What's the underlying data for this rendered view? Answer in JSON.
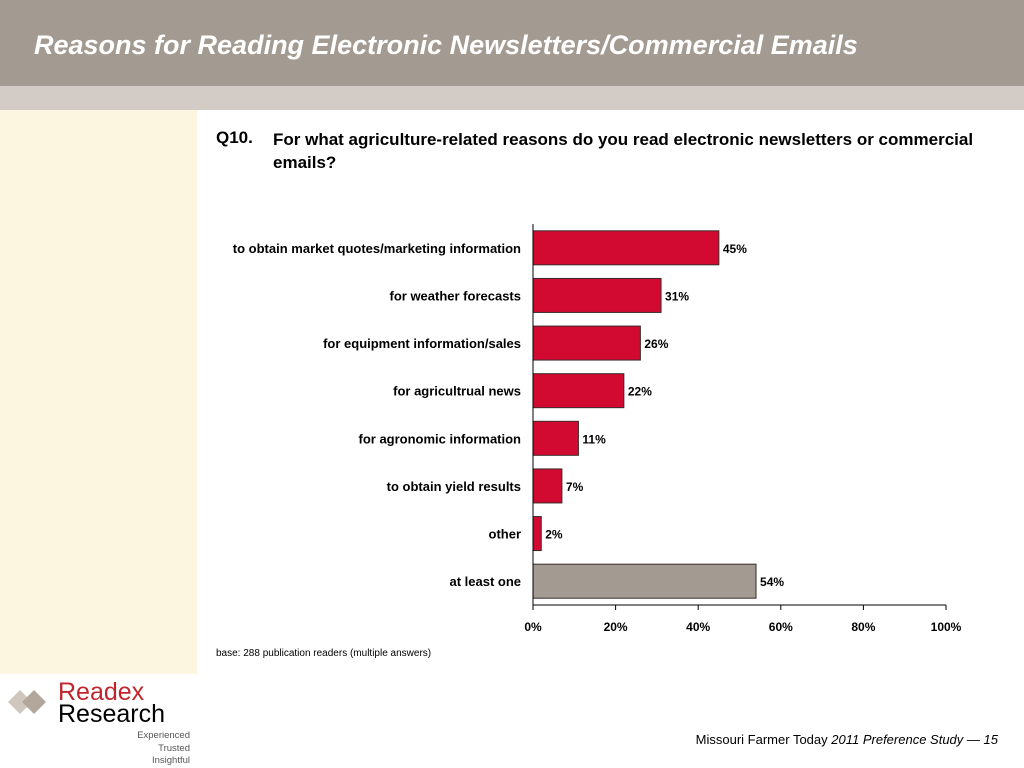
{
  "header": {
    "title": "Reasons for Reading Electronic Newsletters/Commercial Emails"
  },
  "question": {
    "number": "Q10.",
    "text": "For what agriculture-related reasons do you read electronic newsletters or commercial emails?"
  },
  "chart_data": {
    "type": "bar",
    "orientation": "horizontal",
    "categories": [
      "to obtain market quotes/marketing information",
      "for weather forecasts",
      "for equipment information/sales",
      "for agricultrual news",
      "for agronomic information",
      "to obtain yield results",
      "other",
      "at least one"
    ],
    "values": [
      45,
      31,
      26,
      22,
      11,
      7,
      2,
      54
    ],
    "value_labels": [
      "45%",
      "31%",
      "26%",
      "22%",
      "11%",
      "7%",
      "2%",
      "54%"
    ],
    "bar_colors": [
      "#d20a32",
      "#d20a32",
      "#d20a32",
      "#d20a32",
      "#d20a32",
      "#d20a32",
      "#d20a32",
      "#a39a91"
    ],
    "xlim": [
      0,
      100
    ],
    "xticks": [
      "0%",
      "20%",
      "40%",
      "60%",
      "80%",
      "100%"
    ],
    "xlabel": "",
    "ylabel": "",
    "grid": false
  },
  "base_note": "base:  288 publication readers (multiple answers)",
  "logo": {
    "name_top": "Readex",
    "name_bottom": "Research",
    "tagline": [
      "Experienced",
      "Trusted",
      "Insightful"
    ]
  },
  "footer": {
    "publication": "Missouri Farmer Today",
    "study": "2011 Preference Study",
    "separator": "—",
    "page": "15"
  },
  "colors": {
    "header": "#a39a91",
    "band": "#d2cbc6",
    "sidebar": "#fcf6e0",
    "bar": "#d20a32",
    "bar_total": "#a39a91"
  }
}
